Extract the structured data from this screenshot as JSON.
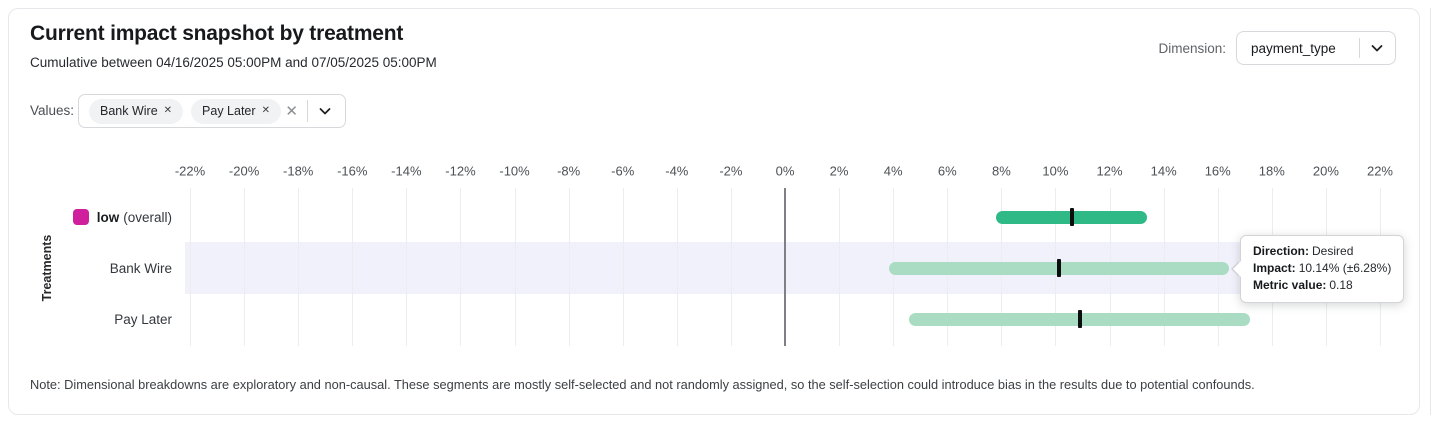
{
  "header": {
    "title": "Current impact snapshot by treatment",
    "subtitle": "Cumulative between 04/16/2025 05:00PM and 07/05/2025 05:00PM"
  },
  "dimension": {
    "label": "Dimension:",
    "value": "payment_type"
  },
  "values_filter": {
    "label": "Values:",
    "chips": [
      "Bank Wire",
      "Pay Later"
    ]
  },
  "icons": {
    "chip_remove": "✕",
    "clear": "✕"
  },
  "chart_data": {
    "type": "bar",
    "orientation": "horizontal",
    "ylabel": "Treatments",
    "x_axis": {
      "min": -22,
      "max": 22,
      "step": 2,
      "unit": "%",
      "grid": true
    },
    "rows": [
      {
        "label": "low",
        "label_suffix": "(overall)",
        "legend_color": "#cf1f9d",
        "impact_pct": 10.6,
        "ci_pct": 2.8,
        "low_pct": 7.8,
        "high_pct": 13.4,
        "bar_color": "#2eb987",
        "highlighted": false
      },
      {
        "label": "Bank Wire",
        "impact_pct": 10.14,
        "ci_pct": 6.28,
        "low_pct": 3.86,
        "high_pct": 16.42,
        "bar_color": "#a9dcc3",
        "highlighted": true
      },
      {
        "label": "Pay Later",
        "impact_pct": 10.9,
        "ci_pct": 6.3,
        "low_pct": 4.6,
        "high_pct": 17.2,
        "bar_color": "#a9dcc3",
        "highlighted": false
      }
    ],
    "highlight_band_color": "#f1f1fc",
    "zero_line_color": "#7e8085",
    "grid_color": "#ededf0"
  },
  "tooltip": {
    "direction_label": "Direction:",
    "direction_value": "Desired",
    "impact_label": "Impact:",
    "impact_value": "10.14% (±6.28%)",
    "metric_label": "Metric value:",
    "metric_value": "0.18"
  },
  "note": "Note: Dimensional breakdowns are exploratory and non-causal. These segments are mostly self-selected and not randomly assigned, so the self-selection could introduce bias in the results due to potential confounds."
}
